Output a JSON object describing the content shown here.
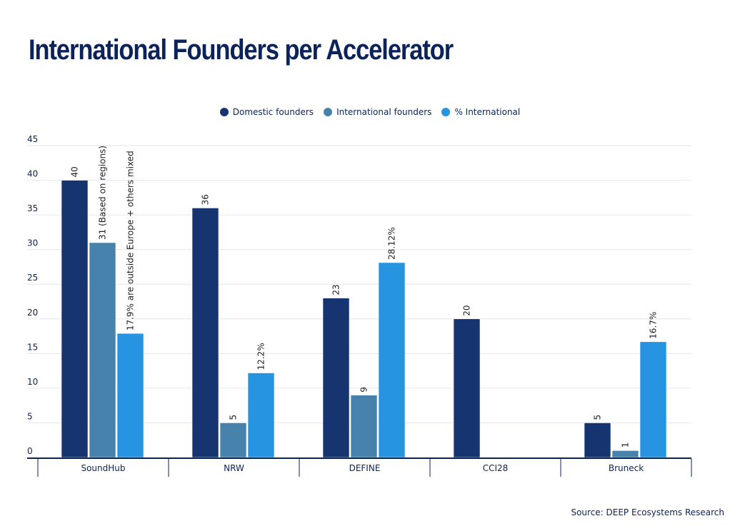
{
  "chart_data": {
    "type": "bar",
    "title": "International Founders per Accelerator",
    "xlabel": "",
    "ylabel": "",
    "ylim": [
      0,
      45
    ],
    "yticks": [
      0,
      5,
      10,
      15,
      20,
      25,
      30,
      35,
      40,
      45
    ],
    "grid": true,
    "legend_position": "top-center",
    "categories": [
      "SoundHub",
      "NRW",
      "DEFINE",
      "CCI28",
      "Bruneck"
    ],
    "series": [
      {
        "name": "Domestic founders",
        "color": "#163570",
        "values": [
          40,
          36,
          23,
          20,
          5
        ],
        "labels": [
          "40",
          "36",
          "23",
          "20",
          "5"
        ]
      },
      {
        "name": "International founders",
        "color": "#4682ab",
        "values": [
          31,
          5,
          9,
          null,
          1
        ],
        "labels": [
          "31 (Based on regions)",
          "5",
          "9",
          "",
          "1"
        ]
      },
      {
        "name": "% International",
        "color": "#2694e0",
        "values": [
          17.9,
          12.2,
          28.12,
          null,
          16.7
        ],
        "labels": [
          "17.9% are outside Europe + others mixed",
          "12.2%",
          "28.12%",
          "",
          "16.7%"
        ]
      }
    ],
    "source": "Source: DEEP Ecosystems Research"
  }
}
